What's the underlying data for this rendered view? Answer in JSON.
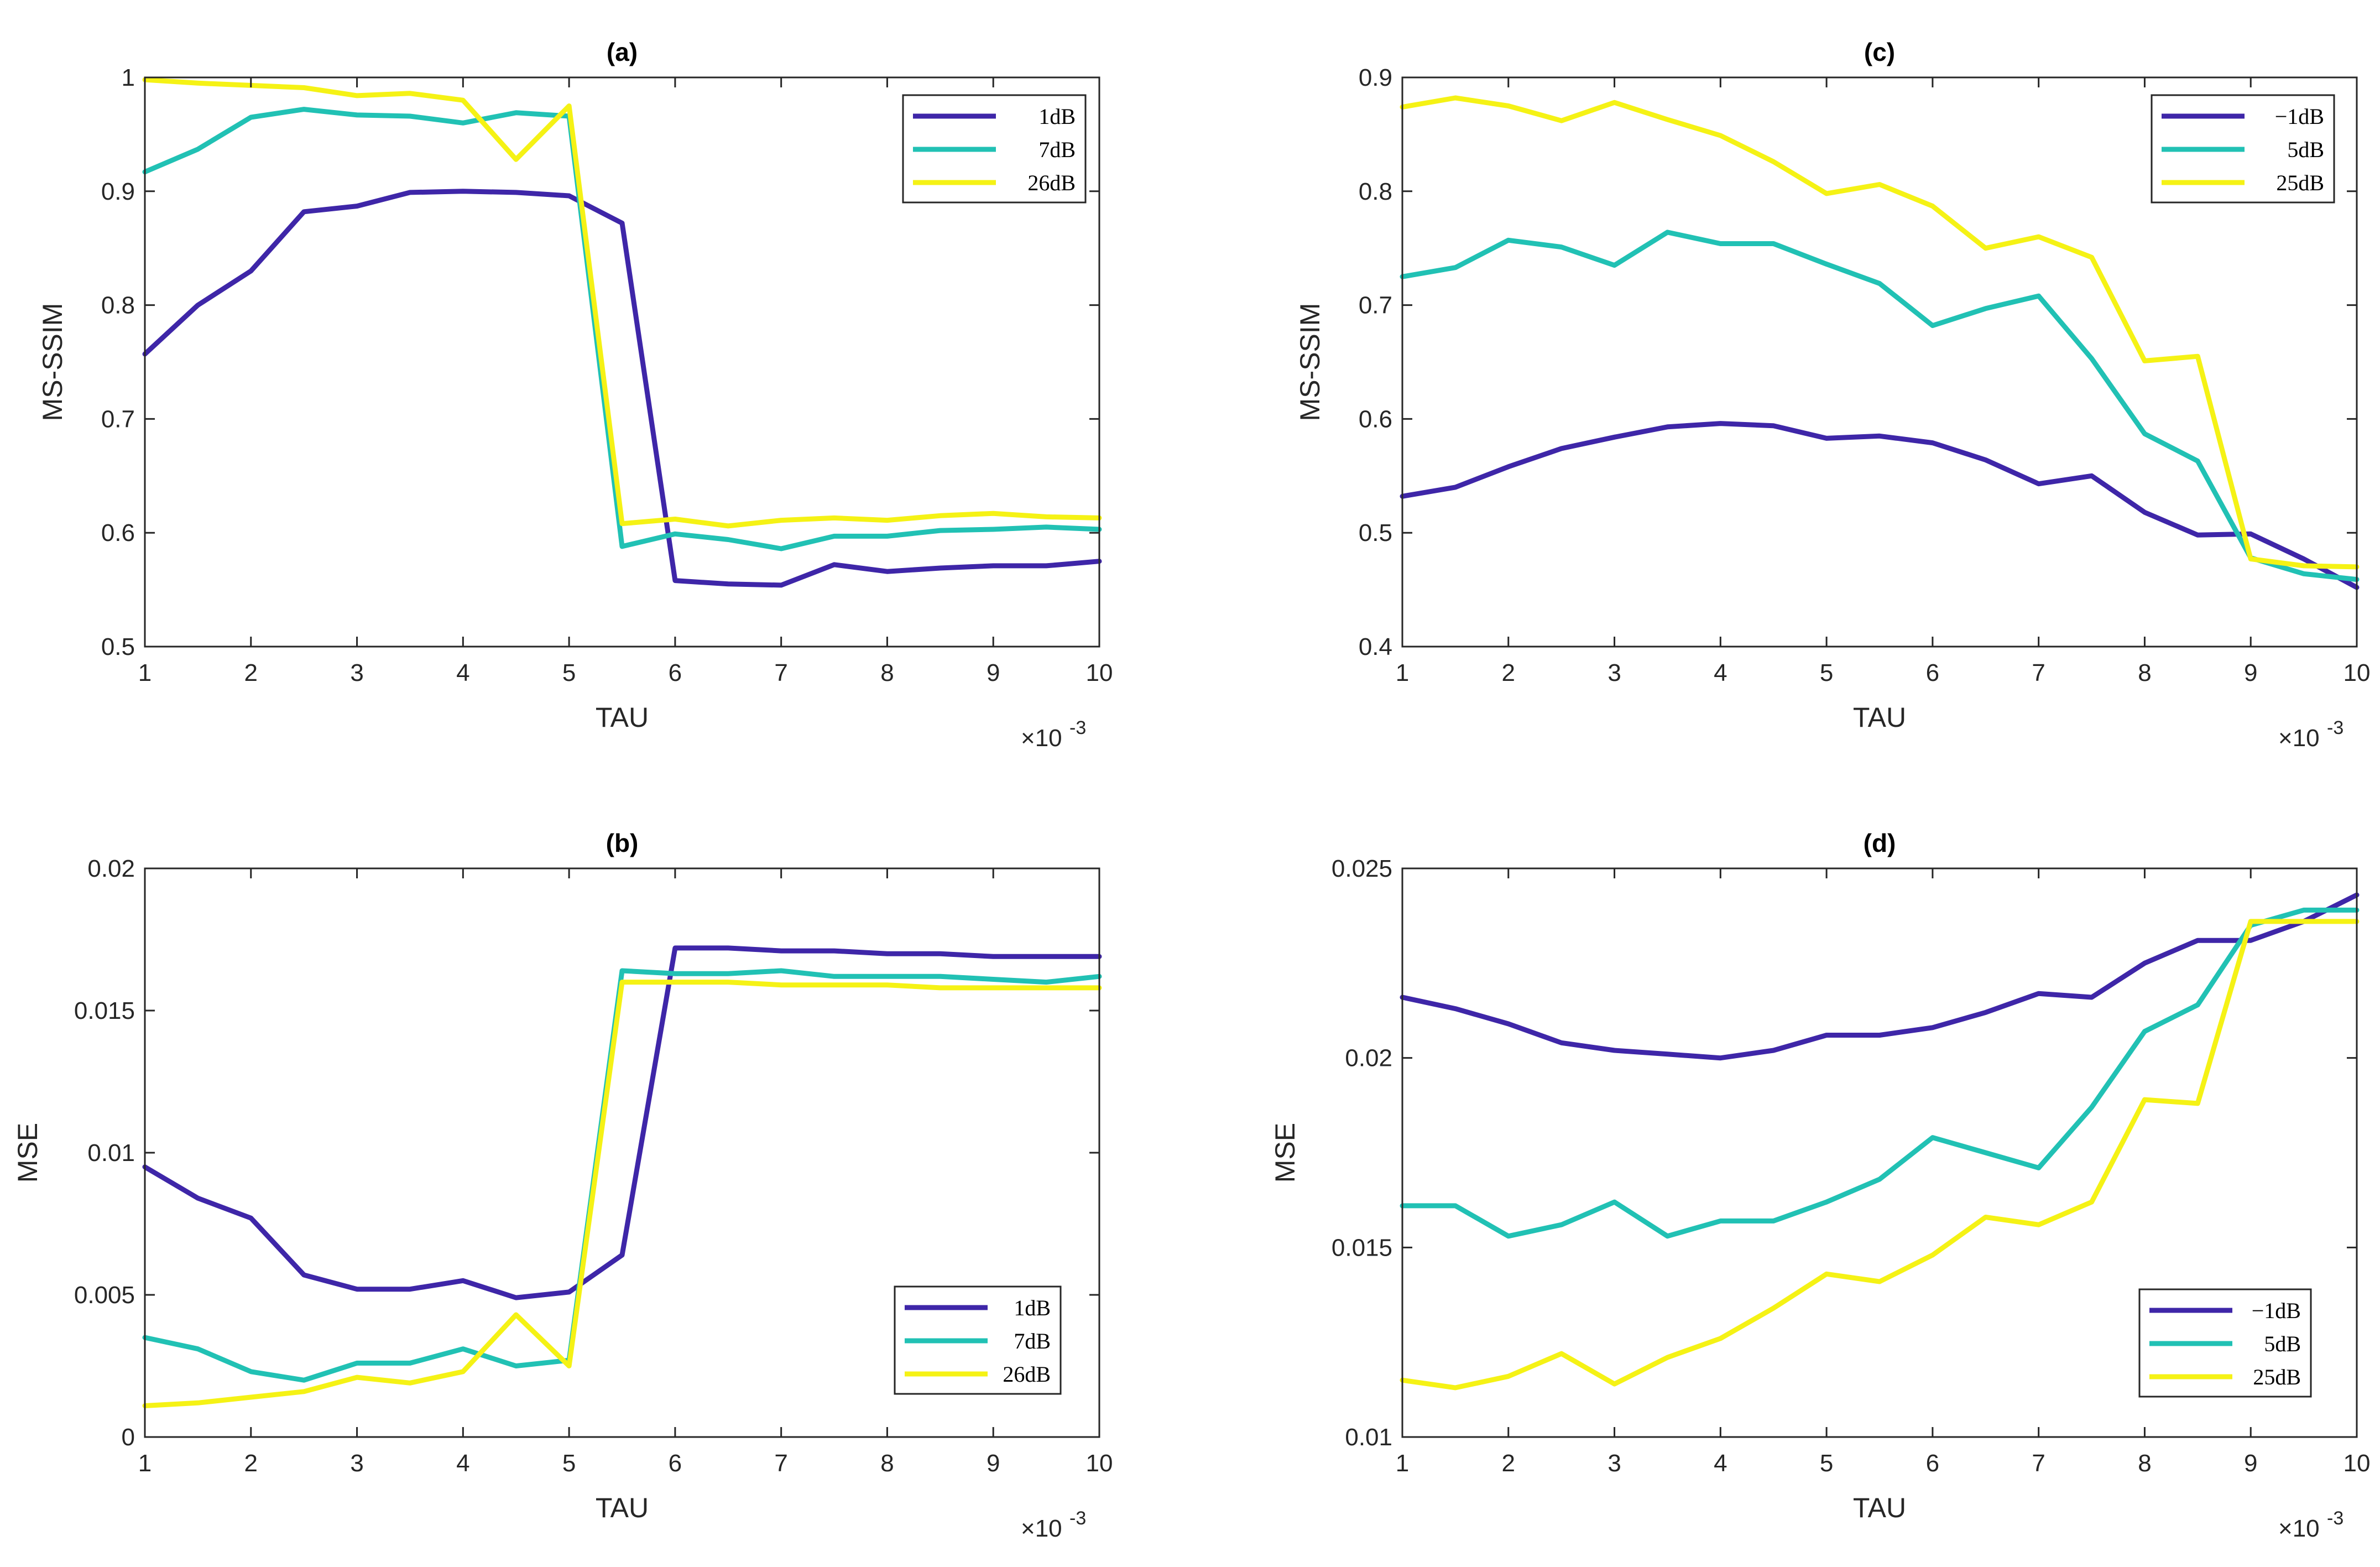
{
  "chart_data": [
    {
      "type": "line",
      "title": "(a)",
      "xlabel": "TAU",
      "ylabel": "MS-SSIM",
      "x_multiplier_label": "×10",
      "x_multiplier_exp": "-3",
      "xlim": [
        1,
        10
      ],
      "ylim": [
        0.5,
        1
      ],
      "x_ticks": [
        1,
        2,
        3,
        4,
        5,
        6,
        7,
        8,
        9,
        10
      ],
      "x_tick_labels": [
        "1",
        "2",
        "3",
        "4",
        "5",
        "6",
        "7",
        "8",
        "9",
        "10"
      ],
      "y_ticks": [
        0.5,
        0.6,
        0.7,
        0.8,
        0.9,
        1
      ],
      "y_tick_labels": [
        "0.5",
        "0.6",
        "0.7",
        "0.8",
        "0.9",
        "1"
      ],
      "legend_position": "top-right",
      "x": [
        1,
        1.5,
        2,
        2.5,
        3,
        3.5,
        4,
        4.5,
        5,
        5.5,
        6,
        6.5,
        7,
        7.5,
        8,
        8.5,
        9,
        9.5,
        10
      ],
      "series": [
        {
          "name": "1dB",
          "color": "#3E26A8",
          "values": [
            0.757,
            0.8,
            0.83,
            0.882,
            0.887,
            0.899,
            0.9,
            0.899,
            0.896,
            0.872,
            0.558,
            0.555,
            0.554,
            0.572,
            0.566,
            0.569,
            0.571,
            0.571,
            0.575
          ]
        },
        {
          "name": "7dB",
          "color": "#21C1B4",
          "values": [
            0.917,
            0.937,
            0.965,
            0.972,
            0.967,
            0.966,
            0.96,
            0.969,
            0.966,
            0.588,
            0.599,
            0.594,
            0.586,
            0.597,
            0.597,
            0.602,
            0.603,
            0.605,
            0.603
          ]
        },
        {
          "name": "26dB",
          "color": "#F5F215",
          "values": [
            0.998,
            0.995,
            0.993,
            0.991,
            0.984,
            0.986,
            0.98,
            0.928,
            0.975,
            0.608,
            0.612,
            0.606,
            0.611,
            0.613,
            0.611,
            0.615,
            0.617,
            0.614,
            0.613
          ]
        }
      ]
    },
    {
      "type": "line",
      "title": "(b)",
      "xlabel": "TAU",
      "ylabel": "MSE",
      "x_multiplier_label": "×10",
      "x_multiplier_exp": "-3",
      "xlim": [
        1,
        10
      ],
      "ylim": [
        0,
        0.02
      ],
      "x_ticks": [
        1,
        2,
        3,
        4,
        5,
        6,
        7,
        8,
        9,
        10
      ],
      "x_tick_labels": [
        "1",
        "2",
        "3",
        "4",
        "5",
        "6",
        "7",
        "8",
        "9",
        "10"
      ],
      "y_ticks": [
        0,
        0.005,
        0.01,
        0.015,
        0.02
      ],
      "y_tick_labels": [
        "0",
        "0.005",
        "0.01",
        "0.015",
        "0.02"
      ],
      "legend_position": "bottom-right",
      "x": [
        1,
        1.5,
        2,
        2.5,
        3,
        3.5,
        4,
        4.5,
        5,
        5.5,
        6,
        6.5,
        7,
        7.5,
        8,
        8.5,
        9,
        9.5,
        10
      ],
      "series": [
        {
          "name": "1dB",
          "color": "#3E26A8",
          "values": [
            0.0095,
            0.0084,
            0.0077,
            0.0057,
            0.0052,
            0.0052,
            0.0055,
            0.0049,
            0.0051,
            0.0064,
            0.0172,
            0.0172,
            0.0171,
            0.0171,
            0.017,
            0.017,
            0.0169,
            0.0169,
            0.0169
          ]
        },
        {
          "name": "7dB",
          "color": "#21C1B4",
          "values": [
            0.0035,
            0.0031,
            0.0023,
            0.002,
            0.0026,
            0.0026,
            0.0031,
            0.0025,
            0.0027,
            0.0164,
            0.0163,
            0.0163,
            0.0164,
            0.0162,
            0.0162,
            0.0162,
            0.0161,
            0.016,
            0.0162
          ]
        },
        {
          "name": "26dB",
          "color": "#F5F215",
          "values": [
            0.0011,
            0.0012,
            0.0014,
            0.0016,
            0.0021,
            0.0019,
            0.0023,
            0.0043,
            0.0025,
            0.016,
            0.016,
            0.016,
            0.0159,
            0.0159,
            0.0159,
            0.0158,
            0.0158,
            0.0158,
            0.0158
          ]
        }
      ]
    },
    {
      "type": "line",
      "title": "(c)",
      "xlabel": "TAU",
      "ylabel": "MS-SSIM",
      "x_multiplier_label": "×10",
      "x_multiplier_exp": "-3",
      "xlim": [
        1,
        10
      ],
      "ylim": [
        0.4,
        0.9
      ],
      "x_ticks": [
        1,
        2,
        3,
        4,
        5,
        6,
        7,
        8,
        9,
        10
      ],
      "x_tick_labels": [
        "1",
        "2",
        "3",
        "4",
        "5",
        "6",
        "7",
        "8",
        "9",
        "10"
      ],
      "y_ticks": [
        0.4,
        0.5,
        0.6,
        0.7,
        0.8,
        0.9
      ],
      "y_tick_labels": [
        "0.4",
        "0.5",
        "0.6",
        "0.7",
        "0.8",
        "0.9"
      ],
      "legend_position": "top-right",
      "x": [
        1,
        1.5,
        2,
        2.5,
        3,
        3.5,
        4,
        4.5,
        5,
        5.5,
        6,
        6.5,
        7,
        7.5,
        8,
        8.5,
        9,
        9.5,
        10
      ],
      "series": [
        {
          "name": "−1dB",
          "color": "#3E26A8",
          "values": [
            0.532,
            0.54,
            0.558,
            0.574,
            0.584,
            0.593,
            0.596,
            0.594,
            0.583,
            0.585,
            0.579,
            0.564,
            0.543,
            0.55,
            0.518,
            0.498,
            0.499,
            0.477,
            0.452
          ]
        },
        {
          "name": "5dB",
          "color": "#21C1B4",
          "values": [
            0.725,
            0.733,
            0.757,
            0.751,
            0.735,
            0.764,
            0.754,
            0.754,
            0.736,
            0.719,
            0.682,
            0.697,
            0.708,
            0.653,
            0.587,
            0.563,
            0.478,
            0.464,
            0.459
          ]
        },
        {
          "name": "25dB",
          "color": "#F5F215",
          "values": [
            0.874,
            0.882,
            0.875,
            0.862,
            0.878,
            0.863,
            0.849,
            0.826,
            0.798,
            0.806,
            0.787,
            0.75,
            0.76,
            0.742,
            0.651,
            0.655,
            0.477,
            0.471,
            0.47
          ]
        }
      ]
    },
    {
      "type": "line",
      "title": "(d)",
      "xlabel": "TAU",
      "ylabel": "MSE",
      "x_multiplier_label": "×10",
      "x_multiplier_exp": "-3",
      "xlim": [
        1,
        10
      ],
      "ylim": [
        0.01,
        0.025
      ],
      "x_ticks": [
        1,
        2,
        3,
        4,
        5,
        6,
        7,
        8,
        9,
        10
      ],
      "x_tick_labels": [
        "1",
        "2",
        "3",
        "4",
        "5",
        "6",
        "7",
        "8",
        "9",
        "10"
      ],
      "y_ticks": [
        0.01,
        0.015,
        0.02,
        0.025
      ],
      "y_tick_labels": [
        "0.01",
        "0.015",
        "0.02",
        "0.025"
      ],
      "legend_position": "bottom-right",
      "x": [
        1,
        1.5,
        2,
        2.5,
        3,
        3.5,
        4,
        4.5,
        5,
        5.5,
        6,
        6.5,
        7,
        7.5,
        8,
        8.5,
        9,
        9.5,
        10
      ],
      "series": [
        {
          "name": "−1dB",
          "color": "#3E26A8",
          "values": [
            0.0216,
            0.0213,
            0.0209,
            0.0204,
            0.0202,
            0.0201,
            0.02,
            0.0202,
            0.0206,
            0.0206,
            0.0208,
            0.0212,
            0.0217,
            0.0216,
            0.0225,
            0.0231,
            0.0231,
            0.0236,
            0.0243
          ]
        },
        {
          "name": "5dB",
          "color": "#21C1B4",
          "values": [
            0.0161,
            0.0161,
            0.0153,
            0.0156,
            0.0162,
            0.0153,
            0.0157,
            0.0157,
            0.0162,
            0.0168,
            0.0179,
            0.0175,
            0.0171,
            0.0187,
            0.0207,
            0.0214,
            0.0235,
            0.0239,
            0.0239
          ]
        },
        {
          "name": "25dB",
          "color": "#F5F215",
          "values": [
            0.0115,
            0.0113,
            0.0116,
            0.0122,
            0.0114,
            0.0121,
            0.0126,
            0.0134,
            0.0143,
            0.0141,
            0.0148,
            0.0158,
            0.0156,
            0.0162,
            0.0189,
            0.0188,
            0.0236,
            0.0236,
            0.0236
          ]
        }
      ]
    }
  ]
}
